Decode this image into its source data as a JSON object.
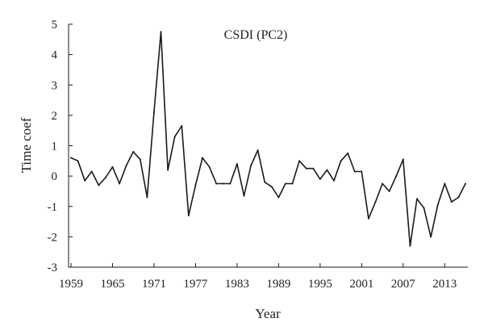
{
  "chart_data": {
    "type": "line",
    "title": "CSDI (PC2)",
    "xlabel": "Year",
    "ylabel": "Time coef",
    "xlim": [
      1959,
      2016
    ],
    "ylim": [
      -3,
      5
    ],
    "x_ticks": [
      1959,
      1965,
      1971,
      1977,
      1983,
      1989,
      1995,
      2001,
      2007,
      2013
    ],
    "x_tick_labels": [
      "1959",
      "1965",
      "1971",
      "1977",
      "1983",
      "1989",
      "1995",
      "2001",
      "2007",
      "2013"
    ],
    "y_ticks": [
      -3,
      -2,
      -1,
      0,
      1,
      2,
      3,
      4,
      5
    ],
    "y_tick_labels": [
      "-3",
      "-2",
      "-1",
      "0",
      "1",
      "2",
      "3",
      "4",
      "5"
    ],
    "grid": false,
    "color": "#1a1a1a",
    "series": [
      {
        "x": [
          1959,
          1960,
          1961,
          1962,
          1963,
          1964,
          1965,
          1966,
          1967,
          1968,
          1969,
          1970,
          1971,
          1972,
          1973,
          1974,
          1975,
          1976,
          1977,
          1978,
          1979,
          1980,
          1981,
          1982,
          1983,
          1984,
          1985,
          1986,
          1987,
          1988,
          1989,
          1990,
          1991,
          1992,
          1993,
          1994,
          1995,
          1996,
          1997,
          1998,
          1999,
          2000,
          2001,
          2002,
          2003,
          2004,
          2005,
          2006,
          2007,
          2008,
          2009,
          2010,
          2011,
          2012,
          2013,
          2014,
          2015,
          2016
        ],
        "values": [
          0.6,
          0.5,
          -0.15,
          0.15,
          -0.3,
          -0.05,
          0.3,
          -0.25,
          0.35,
          0.8,
          0.55,
          -0.7,
          2.1,
          4.75,
          0.2,
          1.3,
          1.65,
          -1.3,
          -0.3,
          0.6,
          0.3,
          -0.25,
          -0.25,
          -0.25,
          0.4,
          -0.65,
          0.35,
          0.85,
          -0.2,
          -0.35,
          -0.7,
          -0.25,
          -0.25,
          0.5,
          0.25,
          0.25,
          -0.1,
          0.2,
          -0.15,
          0.5,
          0.75,
          0.15,
          0.15,
          -1.4,
          -0.85,
          -0.25,
          -0.5,
          0.0,
          0.55,
          -2.3,
          -0.75,
          -1.05,
          -2.0,
          -0.95,
          -0.25,
          -0.85,
          -0.7,
          -0.25
        ]
      }
    ]
  }
}
